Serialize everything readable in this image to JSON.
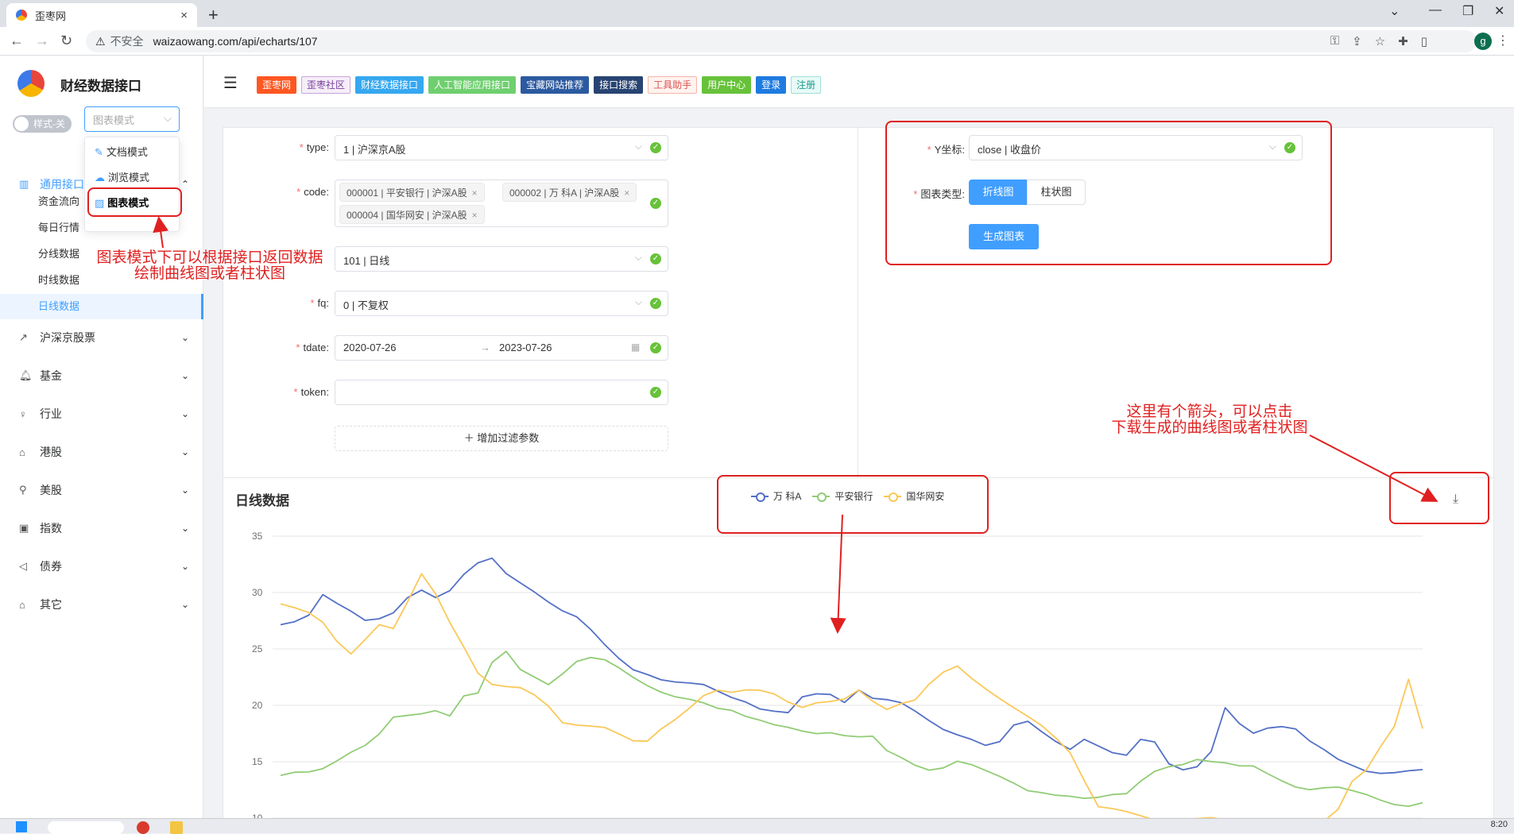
{
  "browser": {
    "tab_title": "歪枣网",
    "insecure_label": "不安全",
    "url": "waizaowang.com/api/echarts/107",
    "profile_initial": "g"
  },
  "sidebar": {
    "site_title": "财经数据接口",
    "style_toggle": "样式-关",
    "mode_placeholder": "图表模式",
    "mode_options": [
      "文档模式",
      "浏览模式",
      "图表模式"
    ],
    "menu": [
      {
        "label": "通用接口",
        "icon": "bank-icon"
      },
      {
        "label": "沪深京股票",
        "icon": "trend-icon"
      },
      {
        "label": "基金",
        "icon": "bell-icon"
      },
      {
        "label": "行业",
        "icon": "bulb-icon"
      },
      {
        "label": "港股",
        "icon": "building-icon"
      },
      {
        "label": "美股",
        "icon": "bike-icon"
      },
      {
        "label": "指数",
        "icon": "tablet-icon"
      },
      {
        "label": "债券",
        "icon": "speaker-icon"
      },
      {
        "label": "其它",
        "icon": "house-icon"
      }
    ],
    "submenu": [
      "资金流向",
      "每日行情",
      "分线数据",
      "时线数据",
      "日线数据"
    ],
    "active_sub": "日线数据"
  },
  "header": {
    "tags": [
      {
        "label": "歪枣网",
        "bg": "#ff5722",
        "fg": "#ffffff",
        "border": "#ff5722"
      },
      {
        "label": "歪枣社区",
        "bg": "#f5eef8",
        "fg": "#7a3e9d",
        "border": "#c9a6dd"
      },
      {
        "label": "财经数据接口",
        "bg": "#35a8f0",
        "fg": "#ffffff",
        "border": "#35a8f0"
      },
      {
        "label": "人工智能应用接口",
        "bg": "#6fcf6f",
        "fg": "#ffffff",
        "border": "#6fcf6f"
      },
      {
        "label": "宝藏网站推荐",
        "bg": "#2c5aa0",
        "fg": "#ffffff",
        "border": "#2c5aa0"
      },
      {
        "label": "接口搜索",
        "bg": "#274472",
        "fg": "#ffffff",
        "border": "#274472"
      },
      {
        "label": "工具助手",
        "bg": "#fff3f0",
        "fg": "#d9534f",
        "border": "#f5b7a8"
      },
      {
        "label": "用户中心",
        "bg": "#67c23a",
        "fg": "#ffffff",
        "border": "#67c23a"
      },
      {
        "label": "登录",
        "bg": "#1e7be0",
        "fg": "#ffffff",
        "border": "#1e7be0"
      },
      {
        "label": "注册",
        "bg": "#e8faf7",
        "fg": "#1a9c8c",
        "border": "#9fe0d6"
      }
    ]
  },
  "form": {
    "type_label": "type:",
    "type_value": "1 | 沪深京A股",
    "code_label": "code:",
    "code_chips": [
      "000001 | 平安银行 | 沪深A股",
      "000002 | 万  科A | 沪深A股",
      "000004 | 国华网安 | 沪深A股"
    ],
    "ktype_value": "101 | 日线",
    "fq_label": "fq:",
    "fq_value": "0 | 不复权",
    "tdate_label": "tdate:",
    "tdate_start": "2020-07-26",
    "tdate_end": "2023-07-26",
    "token_label": "token:",
    "token_value": "",
    "add_filter": "增加过滤参数",
    "y_label": "Y坐标:",
    "y_value": "close | 收盘价",
    "chart_type_label": "图表类型:",
    "chart_types": [
      "折线图",
      "柱状图"
    ],
    "active_chart_type": "折线图",
    "generate": "生成图表"
  },
  "annotations": {
    "mode_note_line1": "图表模式下可以根据接口返回数据",
    "mode_note_line2": "绘制曲线图或者柱状图",
    "download_note_line1": "这里有个箭头，可以点击",
    "download_note_line2": "下载生成的曲线图或者柱状图",
    "color": "#e02020"
  },
  "taskbar": {
    "time": "8:20"
  },
  "chart_data": {
    "type": "line",
    "title": "日线数据",
    "xlabel": "",
    "ylabel": "",
    "ylim": [
      10,
      35
    ],
    "yticks": [
      10,
      15,
      20,
      25,
      30,
      35
    ],
    "legend_position": "top-center",
    "grid": true,
    "series": [
      {
        "name": "万  科A",
        "color": "#5470c6",
        "values": [
          26.8,
          27.5,
          28.3,
          29.5,
          28.7,
          28.0,
          27.2,
          27.8,
          28.5,
          29.3,
          30.0,
          29.5,
          30.5,
          31.4,
          32.5,
          33.4,
          32.0,
          31.2,
          30.4,
          29.5,
          28.7,
          28.1,
          27.0,
          25.7,
          24.5,
          23.5,
          23.0,
          22.4,
          22.0,
          21.7,
          21.5,
          21.0,
          20.6,
          20.5,
          20.0,
          19.8,
          19.5,
          20.4,
          21.0,
          21.3,
          20.6,
          21.3,
          20.5,
          20.2,
          19.9,
          19.2,
          18.4,
          17.7,
          17.5,
          17.3,
          16.8,
          16.9,
          17.9,
          18.7,
          17.8,
          17.0,
          16.4,
          17.1,
          16.4,
          15.7,
          15.3,
          17.2,
          17.1,
          15.0,
          14.6,
          14.8,
          15.6,
          19.8,
          18.5,
          17.6,
          17.7,
          17.8,
          17.9,
          16.8,
          16.2,
          15.4,
          15.0,
          14.5,
          14.2,
          14.0,
          13.9,
          14.0
        ]
      },
      {
        "name": "平安银行",
        "color": "#91cc75",
        "values": [
          13.5,
          13.8,
          14.3,
          14.7,
          15.0,
          15.5,
          16.7,
          17.6,
          18.6,
          19.1,
          19.6,
          19.7,
          19.1,
          20.6,
          21.4,
          23.5,
          24.9,
          23.0,
          22.5,
          22.0,
          23.0,
          23.6,
          24.0,
          24.2,
          23.6,
          22.8,
          22.1,
          21.5,
          21.0,
          20.6,
          20.1,
          19.5,
          19.2,
          18.7,
          18.6,
          18.5,
          18.4,
          18.0,
          17.6,
          17.4,
          17.0,
          16.9,
          17.4,
          16.0,
          15.6,
          15.0,
          14.6,
          14.6,
          14.8,
          14.4,
          13.9,
          13.5,
          13.1,
          12.6,
          12.6,
          12.3,
          12.0,
          11.6,
          11.5,
          12.0,
          12.5,
          13.3,
          13.8,
          14.6,
          15.1,
          15.3,
          14.9,
          14.6,
          14.3,
          14.6,
          14.1,
          13.6,
          13.1,
          12.8,
          12.7,
          12.5,
          12.1,
          11.8,
          11.5,
          11.4,
          11.4,
          11.5
        ]
      },
      {
        "name": "国华网安",
        "color": "#fac858",
        "values": [
          29.3,
          29.0,
          28.5,
          27.6,
          26.0,
          24.9,
          25.7,
          27.0,
          27.0,
          29.0,
          32.0,
          30.0,
          27.0,
          25.0,
          23.0,
          22.0,
          21.6,
          21.3,
          20.6,
          19.6,
          18.2,
          17.9,
          18.0,
          18.3,
          17.8,
          17.2,
          17.0,
          17.6,
          18.8,
          20.0,
          20.6,
          21.1,
          21.3,
          21.7,
          21.5,
          21.0,
          20.2,
          19.6,
          19.9,
          20.5,
          20.9,
          21.3,
          20.3,
          19.5,
          19.8,
          20.6,
          22.0,
          22.6,
          23.5,
          22.4,
          21.5,
          20.7,
          20.0,
          19.3,
          18.5,
          17.4,
          16.0,
          13.0,
          10.8,
          10.5,
          10.3,
          10.2,
          10.1,
          10.0,
          9.9,
          9.8,
          9.7,
          9.6,
          9.5,
          9.4,
          9.3,
          9.3,
          9.4,
          9.6,
          9.8,
          11.0,
          13.0,
          14.6,
          16.0,
          18.5,
          22.3,
          18.0
        ]
      }
    ]
  }
}
